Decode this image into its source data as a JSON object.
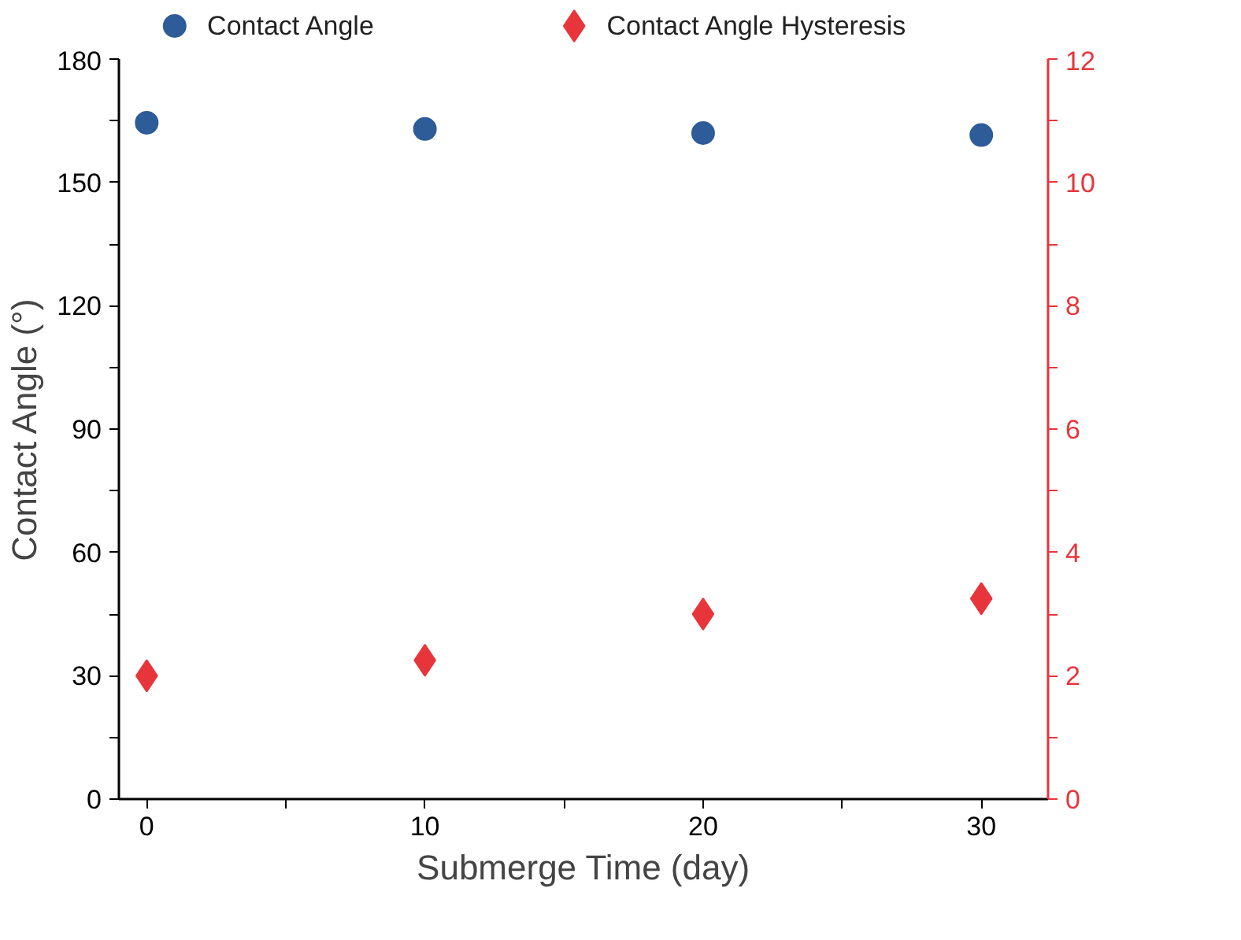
{
  "chart_data": {
    "type": "scatter",
    "xlabel": "Submerge Time (day)",
    "ylabel": "Contact Angle (°)",
    "x": [
      0,
      10,
      20,
      30
    ],
    "series": [
      {
        "name": "Contact Angle",
        "color": "#2e5c98",
        "marker": "circle",
        "values": [
          164.5,
          163,
          162,
          161.5
        ]
      },
      {
        "name": "Contact Angle Hysteresis",
        "color": "#e8353b",
        "marker": "diamond",
        "axis": "y2",
        "values": [
          2.0,
          2.25,
          3.0,
          3.25
        ]
      }
    ],
    "xlim": [
      -1,
      32.4
    ],
    "xticks": [
      0,
      {
        "value": 5,
        "label": null
      },
      10,
      {
        "value": 15,
        "label": null
      },
      20,
      {
        "value": 25,
        "label": null
      },
      30
    ],
    "ylim": [
      0,
      180
    ],
    "yticks": [
      0,
      {
        "value": 15,
        "label": null
      },
      30,
      {
        "value": 45,
        "label": null
      },
      60,
      {
        "value": 75,
        "label": null
      },
      90,
      {
        "value": 105,
        "label": null
      },
      120,
      {
        "value": 135,
        "label": null
      },
      150,
      {
        "value": 165,
        "label": null
      },
      180
    ],
    "y2lim": [
      0,
      12
    ],
    "y2ticks": [
      0,
      {
        "value": 1,
        "label": null
      },
      2,
      {
        "value": 3,
        "label": null
      },
      4,
      {
        "value": 5,
        "label": null
      },
      6,
      {
        "value": 7,
        "label": null
      },
      8,
      {
        "value": 9,
        "label": null
      },
      10,
      {
        "value": 11,
        "label": null
      },
      12
    ],
    "grid": false,
    "legend": "top"
  }
}
